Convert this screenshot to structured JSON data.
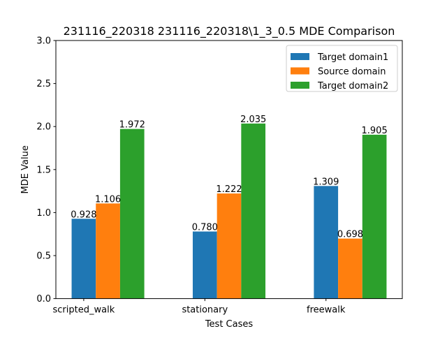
{
  "chart_data": {
    "type": "bar",
    "title": "231116_220318 231116_220318\\1_3_0.5 MDE Comparison",
    "xlabel": "Test Cases",
    "ylabel": "MDE Value",
    "categories": [
      "scripted_walk",
      "stationary",
      "freewalk"
    ],
    "ylim": [
      0,
      3.0
    ],
    "yticks": [
      "0.0",
      "0.5",
      "1.0",
      "1.5",
      "2.0",
      "2.5",
      "3.0"
    ],
    "grid": false,
    "legend_position": "top-right",
    "series": [
      {
        "name": "Target domain1",
        "color": "#1f77b4",
        "values": [
          0.928,
          0.78,
          1.309
        ],
        "labels": [
          "0.928",
          "0.780",
          "1.309"
        ]
      },
      {
        "name": "Source domain",
        "color": "#ff7f0e",
        "values": [
          1.106,
          1.222,
          0.698
        ],
        "labels": [
          "1.106",
          "1.222",
          "0.698"
        ]
      },
      {
        "name": "Target domain2",
        "color": "#2ca02c",
        "values": [
          1.972,
          2.035,
          1.905
        ],
        "labels": [
          "1.972",
          "2.035",
          "1.905"
        ]
      }
    ]
  }
}
